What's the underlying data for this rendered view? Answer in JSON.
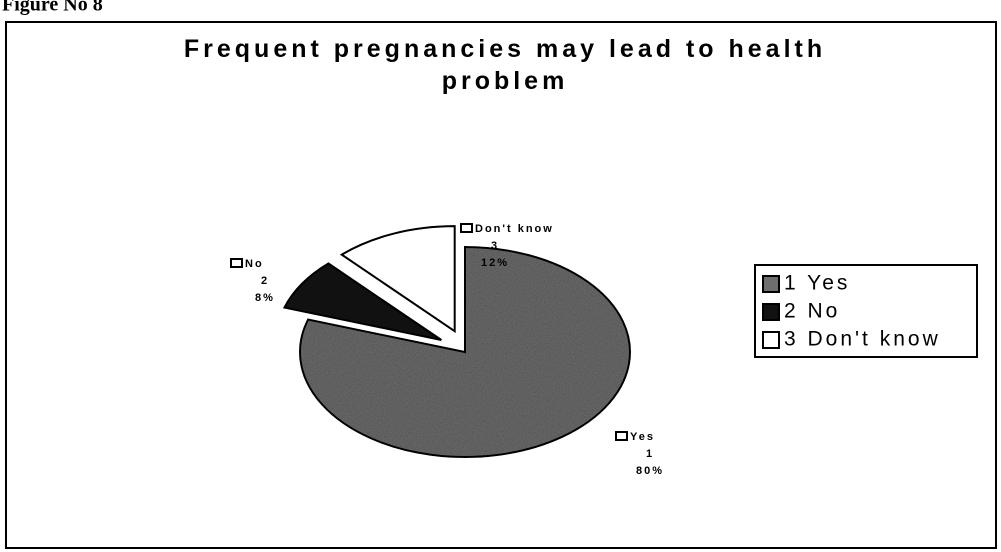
{
  "figure_label": "Figure No 8",
  "chart_data": {
    "type": "pie",
    "title": [
      "Frequent pregnancies may lead to health problem"
    ],
    "categories": [
      "Yes",
      "No",
      "Don't know"
    ],
    "codes": [
      1,
      2,
      3
    ],
    "values": [
      80,
      8,
      12
    ],
    "value_labels": [
      "80%",
      "8%",
      "12%"
    ],
    "colors": [
      "#6e6e6e",
      "#111111",
      "#ffffff"
    ],
    "legend": [
      "1 Yes",
      "2 No",
      "3 Don't know"
    ],
    "exploded": [
      false,
      true,
      true
    ]
  }
}
